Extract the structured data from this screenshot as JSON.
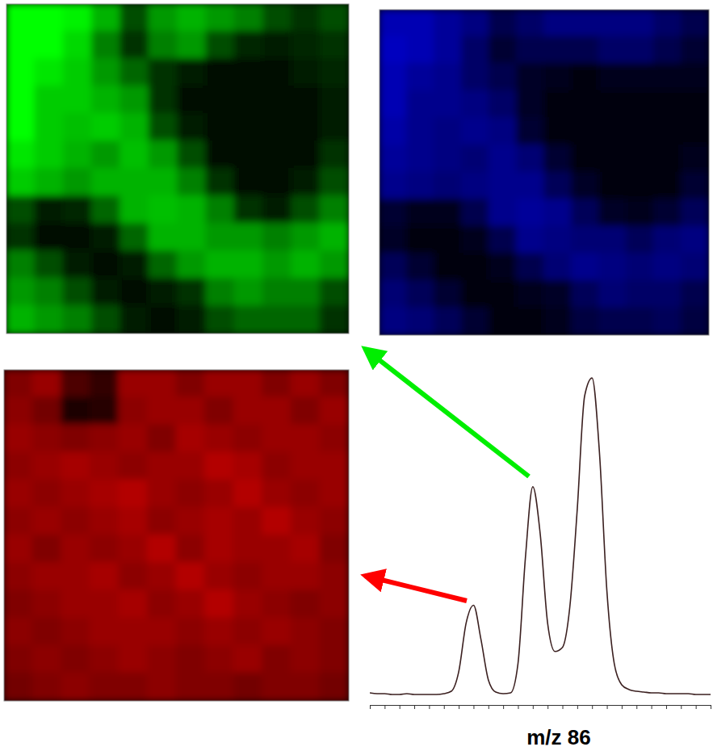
{
  "chart_data": [
    {
      "type": "heatmap",
      "color": "#00ff00",
      "cells": [
        [
          1.0,
          1.0,
          0.95,
          0.7,
          0.3,
          0.6,
          0.7,
          0.6,
          0.5,
          0.3,
          0.2,
          0.3
        ],
        [
          1.0,
          1.0,
          0.85,
          0.5,
          0.2,
          0.5,
          0.6,
          0.3,
          0.15,
          0.1,
          0.15,
          0.2
        ],
        [
          1.0,
          0.9,
          0.8,
          0.6,
          0.4,
          0.2,
          0.1,
          0.05,
          0.05,
          0.05,
          0.1,
          0.15
        ],
        [
          1.0,
          0.8,
          0.8,
          0.7,
          0.6,
          0.2,
          0.05,
          0.05,
          0.05,
          0.05,
          0.05,
          0.1
        ],
        [
          1.0,
          0.8,
          0.75,
          0.8,
          0.7,
          0.3,
          0.1,
          0.05,
          0.05,
          0.05,
          0.05,
          0.1
        ],
        [
          0.9,
          0.8,
          0.7,
          0.6,
          0.75,
          0.6,
          0.3,
          0.05,
          0.05,
          0.05,
          0.05,
          0.2
        ],
        [
          0.8,
          0.7,
          0.6,
          0.7,
          0.7,
          0.7,
          0.5,
          0.2,
          0.05,
          0.05,
          0.1,
          0.3
        ],
        [
          0.3,
          0.1,
          0.15,
          0.4,
          0.7,
          0.75,
          0.7,
          0.5,
          0.2,
          0.1,
          0.3,
          0.5
        ],
        [
          0.2,
          0.05,
          0.05,
          0.1,
          0.4,
          0.7,
          0.7,
          0.6,
          0.6,
          0.5,
          0.6,
          0.7
        ],
        [
          0.5,
          0.3,
          0.1,
          0.05,
          0.1,
          0.4,
          0.6,
          0.7,
          0.7,
          0.6,
          0.7,
          0.6
        ],
        [
          0.6,
          0.5,
          0.3,
          0.1,
          0.05,
          0.1,
          0.2,
          0.5,
          0.6,
          0.5,
          0.5,
          0.3
        ],
        [
          0.7,
          0.6,
          0.5,
          0.3,
          0.1,
          0.05,
          0.1,
          0.3,
          0.4,
          0.4,
          0.4,
          0.2
        ]
      ]
    },
    {
      "type": "heatmap",
      "color": "#0000ff",
      "cells": [
        [
          0.7,
          0.7,
          0.6,
          0.5,
          0.3,
          0.4,
          0.5,
          0.5,
          0.5,
          0.5,
          0.4,
          0.3
        ],
        [
          0.75,
          0.7,
          0.6,
          0.4,
          0.2,
          0.3,
          0.3,
          0.3,
          0.4,
          0.4,
          0.3,
          0.2
        ],
        [
          0.7,
          0.6,
          0.55,
          0.4,
          0.3,
          0.15,
          0.1,
          0.05,
          0.1,
          0.1,
          0.1,
          0.1
        ],
        [
          0.7,
          0.55,
          0.55,
          0.5,
          0.4,
          0.15,
          0.05,
          0.05,
          0.05,
          0.05,
          0.05,
          0.05
        ],
        [
          0.65,
          0.55,
          0.5,
          0.55,
          0.5,
          0.2,
          0.05,
          0.05,
          0.05,
          0.05,
          0.05,
          0.05
        ],
        [
          0.6,
          0.55,
          0.5,
          0.45,
          0.55,
          0.45,
          0.2,
          0.05,
          0.05,
          0.05,
          0.05,
          0.1
        ],
        [
          0.55,
          0.5,
          0.45,
          0.5,
          0.55,
          0.55,
          0.35,
          0.15,
          0.05,
          0.05,
          0.05,
          0.2
        ],
        [
          0.2,
          0.1,
          0.1,
          0.3,
          0.55,
          0.6,
          0.55,
          0.35,
          0.15,
          0.1,
          0.2,
          0.35
        ],
        [
          0.15,
          0.05,
          0.05,
          0.1,
          0.3,
          0.55,
          0.5,
          0.45,
          0.45,
          0.35,
          0.45,
          0.5
        ],
        [
          0.35,
          0.2,
          0.05,
          0.05,
          0.1,
          0.3,
          0.45,
          0.55,
          0.5,
          0.45,
          0.5,
          0.45
        ],
        [
          0.45,
          0.35,
          0.2,
          0.05,
          0.05,
          0.1,
          0.15,
          0.35,
          0.45,
          0.4,
          0.4,
          0.3
        ],
        [
          0.5,
          0.45,
          0.35,
          0.2,
          0.05,
          0.05,
          0.1,
          0.25,
          0.3,
          0.3,
          0.35,
          0.25
        ]
      ]
    },
    {
      "type": "heatmap",
      "color": "#ff0000",
      "cells": [
        [
          0.5,
          0.6,
          0.3,
          0.2,
          0.6,
          0.6,
          0.5,
          0.6,
          0.6,
          0.5,
          0.6,
          0.5
        ],
        [
          0.55,
          0.45,
          0.1,
          0.15,
          0.55,
          0.6,
          0.6,
          0.5,
          0.6,
          0.6,
          0.5,
          0.6
        ],
        [
          0.6,
          0.55,
          0.5,
          0.55,
          0.6,
          0.5,
          0.65,
          0.6,
          0.55,
          0.6,
          0.6,
          0.55
        ],
        [
          0.55,
          0.6,
          0.65,
          0.6,
          0.55,
          0.6,
          0.6,
          0.7,
          0.65,
          0.55,
          0.6,
          0.6
        ],
        [
          0.6,
          0.55,
          0.6,
          0.65,
          0.7,
          0.6,
          0.55,
          0.6,
          0.7,
          0.6,
          0.55,
          0.6
        ],
        [
          0.55,
          0.6,
          0.55,
          0.6,
          0.65,
          0.55,
          0.6,
          0.65,
          0.6,
          0.7,
          0.6,
          0.55
        ],
        [
          0.6,
          0.5,
          0.6,
          0.55,
          0.6,
          0.7,
          0.55,
          0.65,
          0.6,
          0.6,
          0.65,
          0.5
        ],
        [
          0.55,
          0.6,
          0.6,
          0.65,
          0.55,
          0.6,
          0.7,
          0.6,
          0.55,
          0.6,
          0.6,
          0.55
        ],
        [
          0.5,
          0.55,
          0.6,
          0.6,
          0.65,
          0.55,
          0.6,
          0.7,
          0.6,
          0.55,
          0.5,
          0.55
        ],
        [
          0.55,
          0.5,
          0.55,
          0.6,
          0.6,
          0.6,
          0.55,
          0.6,
          0.55,
          0.6,
          0.55,
          0.5
        ],
        [
          0.5,
          0.55,
          0.5,
          0.55,
          0.6,
          0.55,
          0.5,
          0.55,
          0.6,
          0.5,
          0.55,
          0.5
        ],
        [
          0.45,
          0.5,
          0.55,
          0.5,
          0.5,
          0.55,
          0.5,
          0.5,
          0.45,
          0.5,
          0.5,
          0.45
        ]
      ]
    },
    {
      "type": "line",
      "xlabel": "m/z 86",
      "color": "#3b2020",
      "tick_labels": false,
      "x": [
        0,
        0.5,
        1,
        1.5,
        2,
        2.5,
        3,
        3.5,
        4,
        4.5,
        5,
        5.5,
        6,
        6.5,
        7,
        7.5,
        8,
        8.5,
        9,
        9.5,
        10,
        10.5,
        11,
        11.5,
        12,
        12.5,
        13,
        13.5,
        14,
        14.5,
        15,
        15.5,
        16,
        16.5,
        17,
        17.5,
        18,
        18.5,
        19,
        19.5,
        20,
        20.5,
        21,
        21.5,
        22,
        22.5,
        23
      ],
      "values": [
        4,
        3,
        3,
        2,
        2,
        3,
        2,
        2,
        2,
        2,
        3,
        6,
        30,
        90,
        112,
        70,
        20,
        5,
        3,
        4,
        40,
        170,
        258,
        200,
        90,
        55,
        60,
        110,
        230,
        370,
        392,
        300,
        130,
        40,
        14,
        8,
        6,
        5,
        4,
        4,
        3,
        3,
        3,
        3,
        2,
        2,
        2
      ],
      "xlim": [
        0,
        23
      ],
      "xticks": [
        0,
        1,
        2,
        3,
        4,
        5,
        6,
        7,
        8,
        9,
        10,
        11,
        12,
        13,
        14,
        15,
        16,
        17,
        18,
        19,
        20,
        21,
        22,
        23
      ],
      "ylim": [
        0,
        420
      ]
    }
  ]
}
